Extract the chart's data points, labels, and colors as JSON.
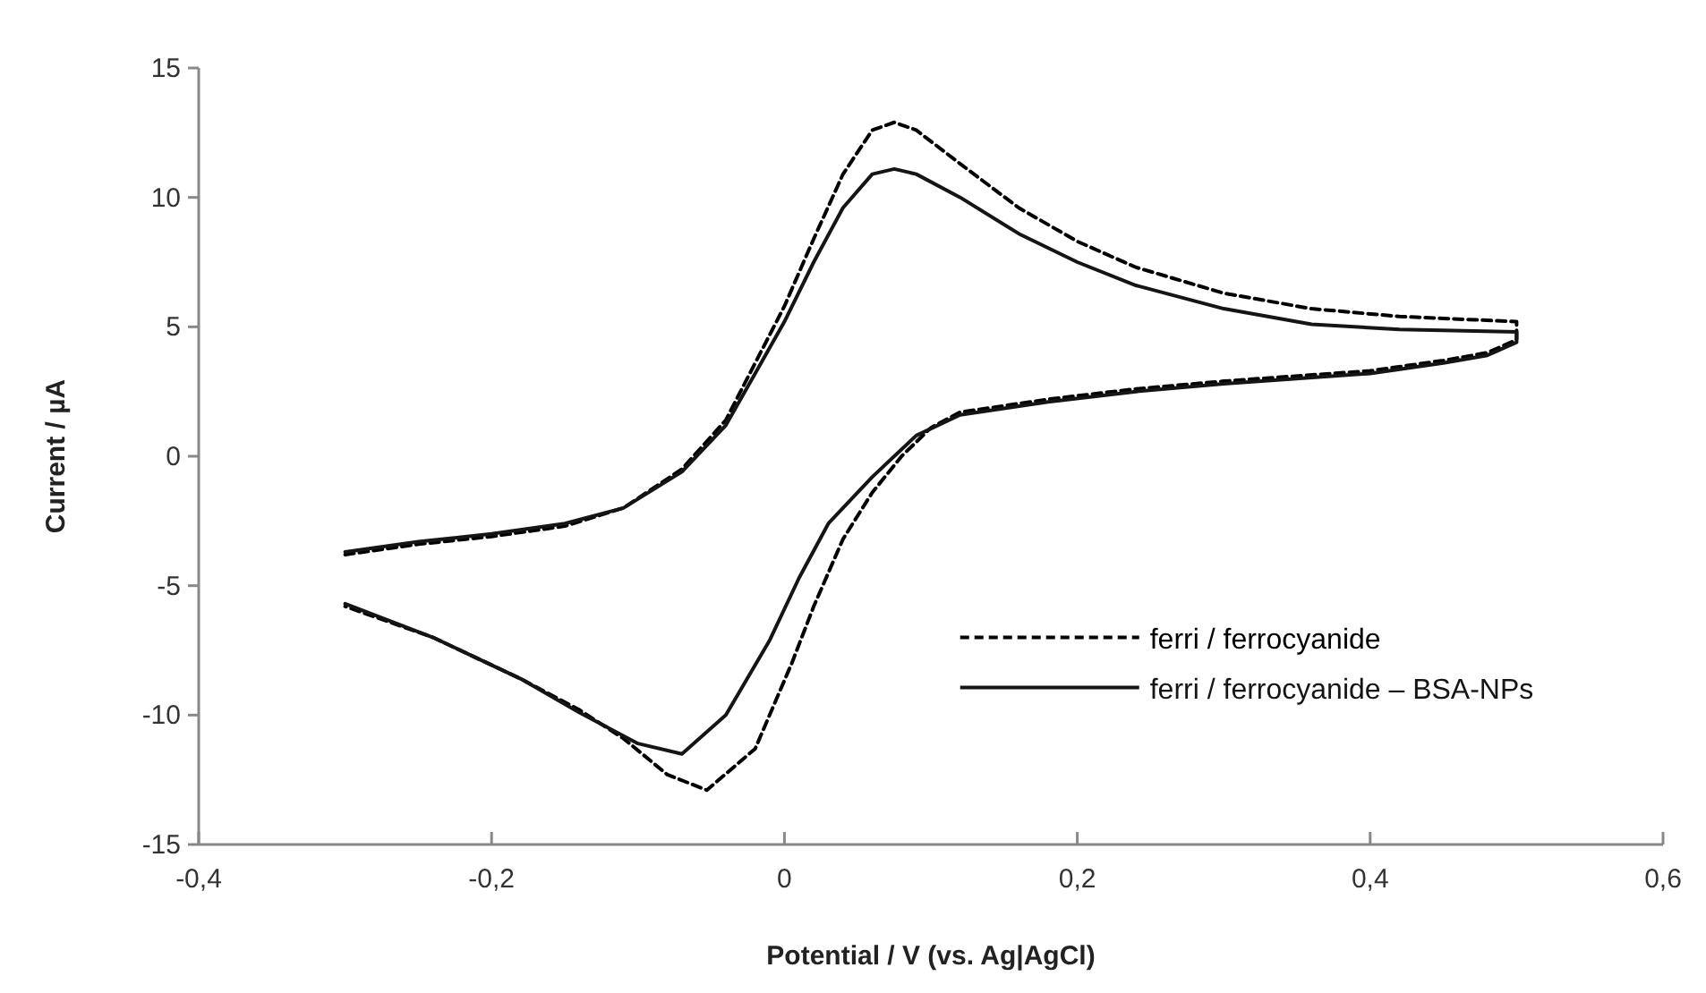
{
  "chart_data": {
    "type": "line",
    "xlabel": "Potential / V  (vs. Ag|AgCl)",
    "ylabel": "Current / µA",
    "xlim": [
      -0.4,
      0.6
    ],
    "xticks": [
      {
        "value": -0.4,
        "label": "-0,4"
      },
      {
        "value": -0.2,
        "label": "-0,2"
      },
      {
        "value": 0,
        "label": "0"
      },
      {
        "value": 0.2,
        "label": "0,2"
      },
      {
        "value": 0.4,
        "label": "0,4"
      },
      {
        "value": 0.6,
        "label": "0,6"
      }
    ],
    "ylim": [
      -15,
      15
    ],
    "yticks": [
      -15,
      -10,
      -5,
      0,
      5,
      10,
      15
    ],
    "grid": false,
    "legend": "bottom right",
    "series": [
      {
        "name": "ferri / ferrocyanide",
        "color": "#000000",
        "line_style": "dashed",
        "x": [
          -0.3,
          -0.25,
          -0.2,
          -0.15,
          -0.11,
          -0.07,
          -0.04,
          -0.02,
          0,
          0.02,
          0.04,
          0.06,
          0.075,
          0.09,
          0.12,
          0.16,
          0.2,
          0.24,
          0.3,
          0.36,
          0.42,
          0.5,
          0.5,
          0.48,
          0.45,
          0.4,
          0.3,
          0.24,
          0.18,
          0.12,
          0.1,
          0.08,
          0.06,
          0.04,
          0.02,
          0.005,
          -0.02,
          -0.053,
          -0.08,
          -0.11,
          -0.14,
          -0.18,
          -0.24,
          -0.3
        ],
        "values": [
          -3.8,
          -3.4,
          -3.1,
          -2.7,
          -2.0,
          -0.5,
          1.4,
          3.6,
          5.8,
          8.4,
          10.9,
          12.6,
          12.9,
          12.6,
          11.3,
          9.6,
          8.3,
          7.3,
          6.3,
          5.7,
          5.4,
          5.2,
          4.5,
          4.0,
          3.7,
          3.3,
          2.9,
          2.6,
          2.2,
          1.7,
          1.1,
          0,
          -1.4,
          -3.2,
          -5.8,
          -8.0,
          -11.3,
          -12.9,
          -12.3,
          -10.9,
          -9.8,
          -8.6,
          -7.0,
          -5.8
        ]
      },
      {
        "name": "ferri / ferrocyanide – BSA-NPs",
        "color": "#151515",
        "line_style": "solid",
        "x": [
          -0.3,
          -0.25,
          -0.2,
          -0.15,
          -0.11,
          -0.07,
          -0.04,
          -0.02,
          0,
          0.02,
          0.04,
          0.06,
          0.075,
          0.09,
          0.12,
          0.16,
          0.2,
          0.24,
          0.3,
          0.36,
          0.42,
          0.5,
          0.5,
          0.48,
          0.45,
          0.4,
          0.3,
          0.24,
          0.18,
          0.12,
          0.09,
          0.06,
          0.03,
          0.01,
          -0.01,
          -0.04,
          -0.07,
          -0.1,
          -0.14,
          -0.18,
          -0.24,
          -0.3
        ],
        "values": [
          -3.7,
          -3.3,
          -3.0,
          -2.6,
          -2.0,
          -0.6,
          1.2,
          3.2,
          5.2,
          7.5,
          9.6,
          10.9,
          11.1,
          10.9,
          10.0,
          8.6,
          7.5,
          6.6,
          5.7,
          5.1,
          4.9,
          4.8,
          4.4,
          3.9,
          3.6,
          3.2,
          2.8,
          2.5,
          2.1,
          1.6,
          0.8,
          -0.8,
          -2.6,
          -4.7,
          -7.1,
          -10.0,
          -11.5,
          -11.1,
          -9.9,
          -8.6,
          -7.0,
          -5.7
        ]
      }
    ]
  }
}
